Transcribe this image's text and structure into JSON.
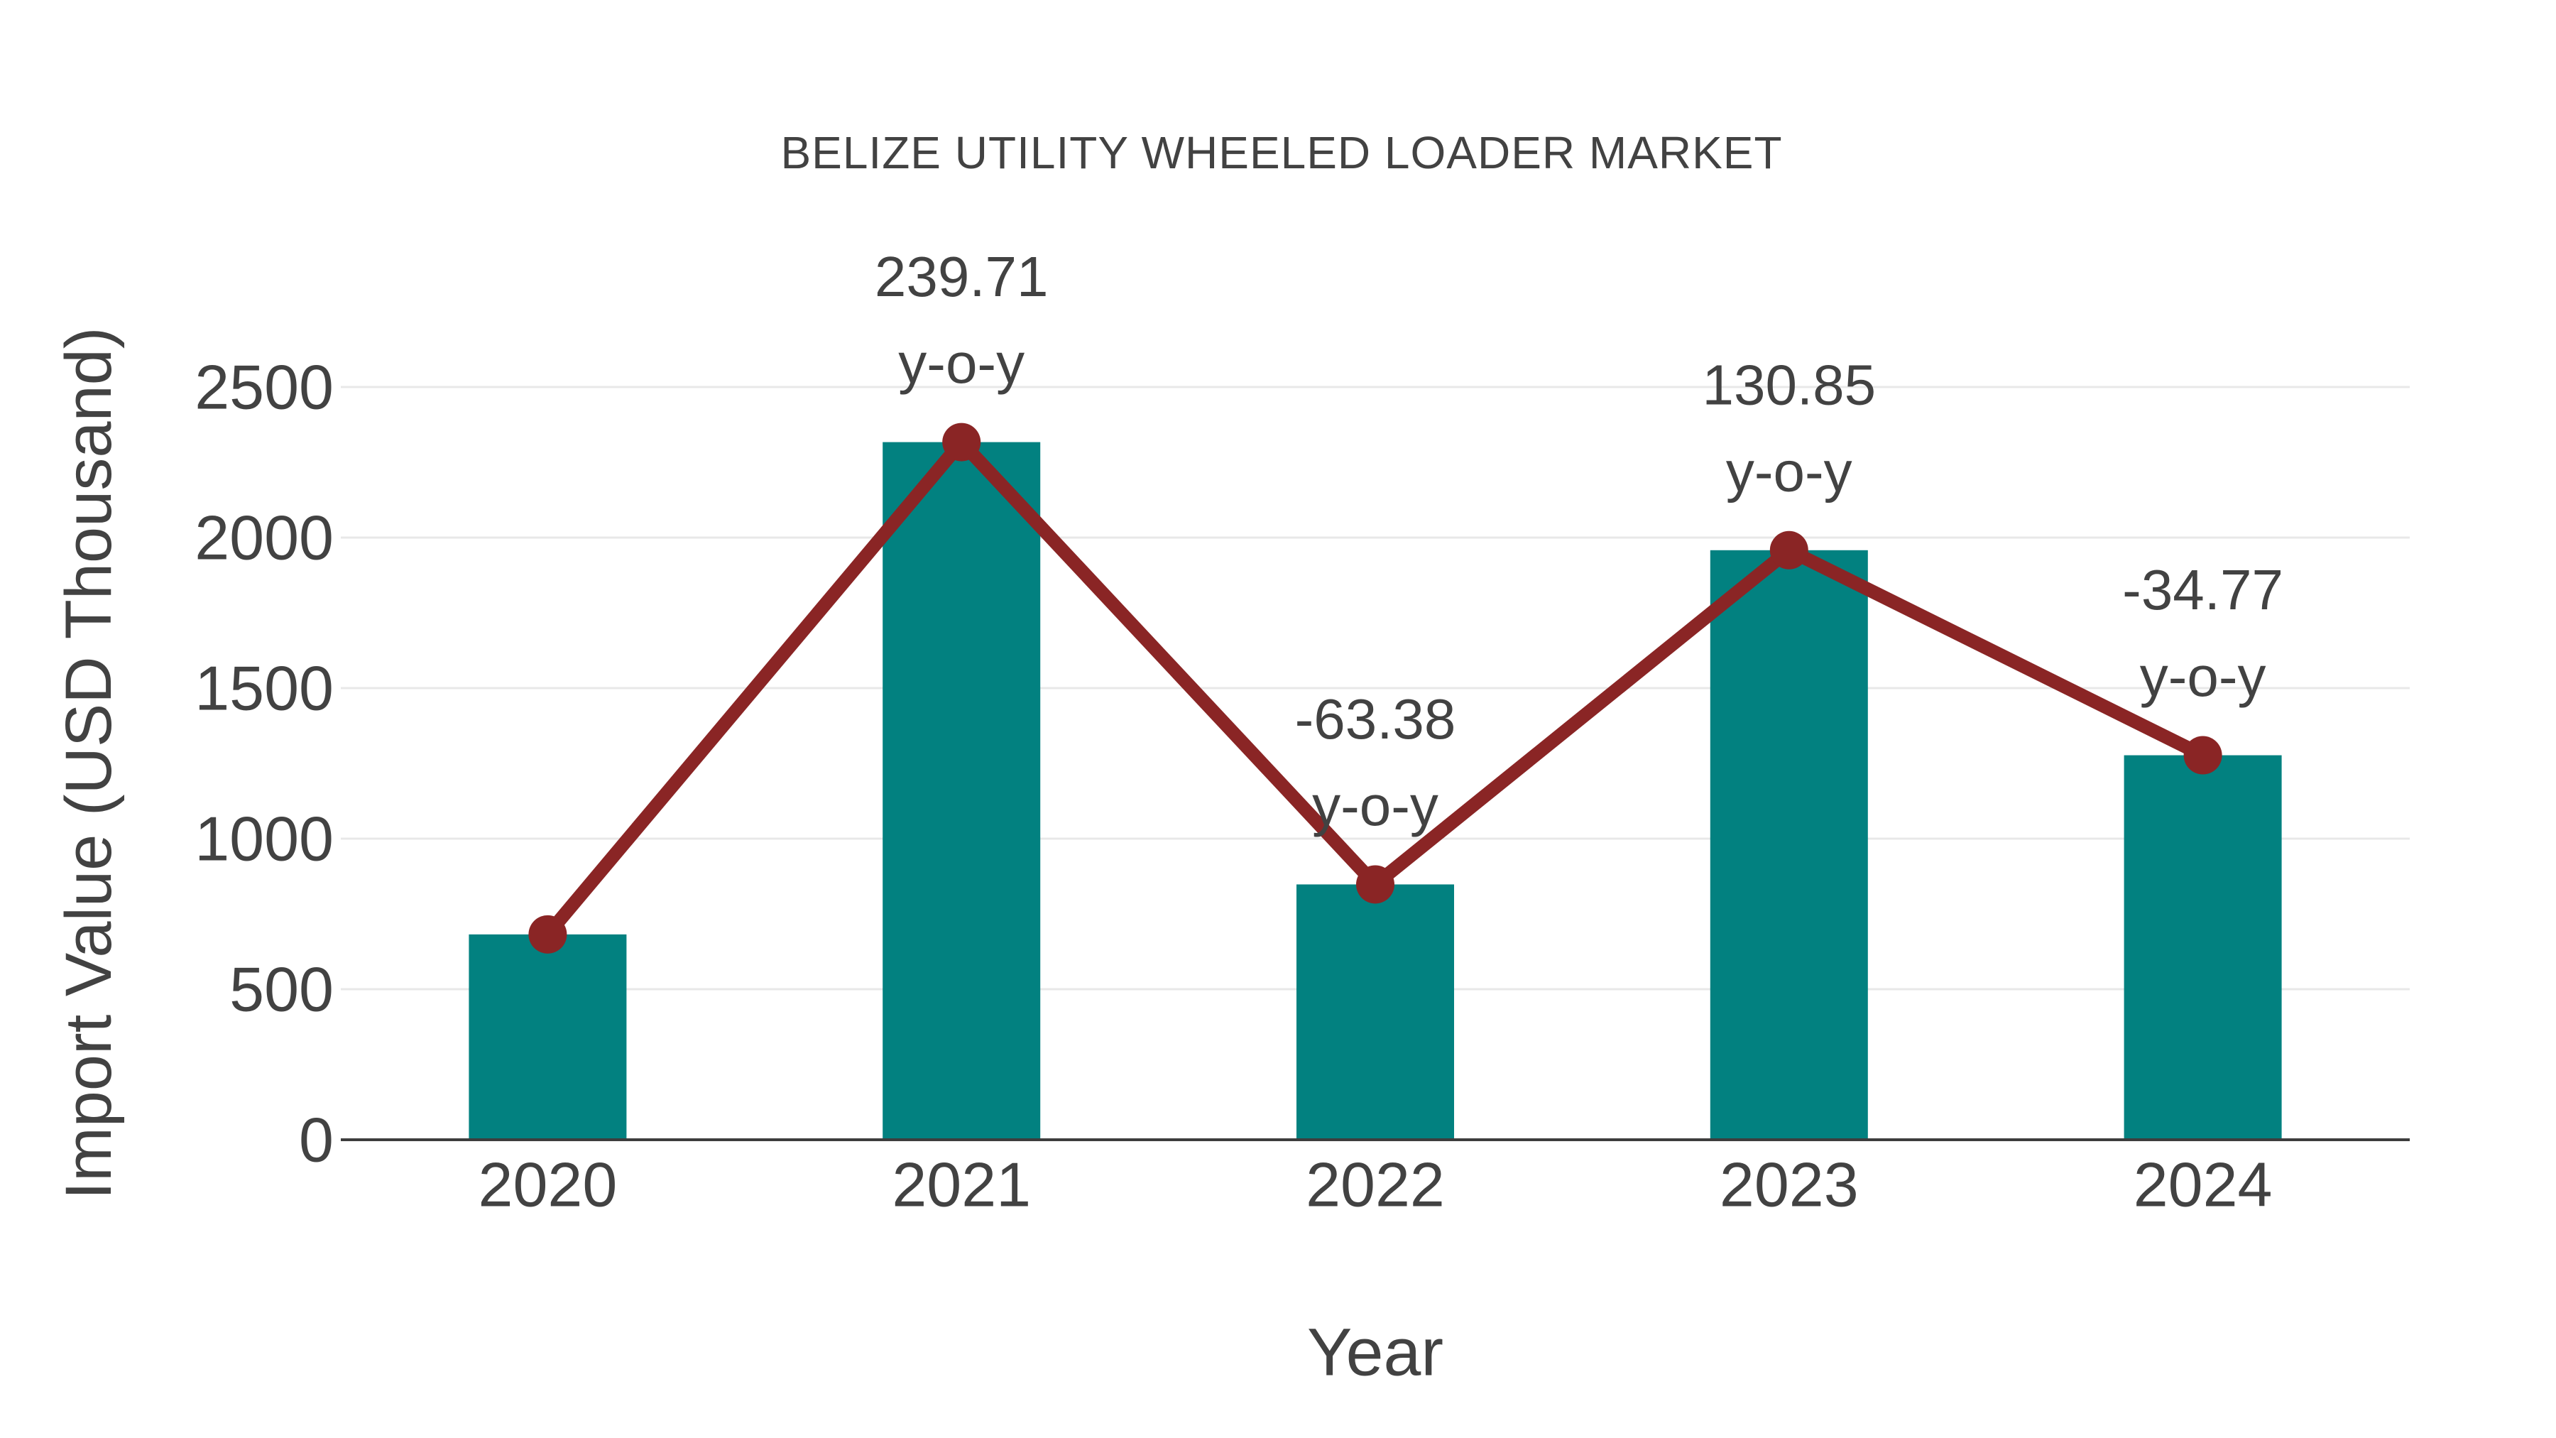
{
  "colors": {
    "bar": "#028180",
    "line": "#8a2525",
    "text": "#424242",
    "grid": "#e8e8e8",
    "axis": "#3d3d3d",
    "background": "#ffffff"
  },
  "chart_data": {
    "type": "bar",
    "subtype": "bar-with-line-overlay",
    "title": "BELIZE UTILITY WHEELED LOADER MARKET",
    "xlabel": "Year",
    "ylabel": "Import Value (USD Thousand)",
    "categories": [
      "2020",
      "2021",
      "2022",
      "2023",
      "2024"
    ],
    "series": [
      {
        "name": "Import Value (USD Thousand)",
        "type": "bar",
        "values": [
          682,
          2317,
          848,
          1958,
          1277
        ]
      },
      {
        "name": "y-o-y change (%)",
        "type": "line-markers",
        "plotted_at_bar_tops": true,
        "values_pct": [
          null,
          239.71,
          -63.38,
          130.85,
          -34.77
        ]
      }
    ],
    "annotations": [
      {
        "category": "2021",
        "value": "239.71",
        "suffix": "y-o-y"
      },
      {
        "category": "2022",
        "value": "-63.38",
        "suffix": "y-o-y"
      },
      {
        "category": "2023",
        "value": "130.85",
        "suffix": "y-o-y"
      },
      {
        "category": "2024",
        "value": "-34.77",
        "suffix": "y-o-y"
      }
    ],
    "yticks": [
      0,
      500,
      1000,
      1500,
      2000,
      2500
    ],
    "ylim": [
      0,
      2500
    ],
    "grid": true,
    "legend": false
  }
}
